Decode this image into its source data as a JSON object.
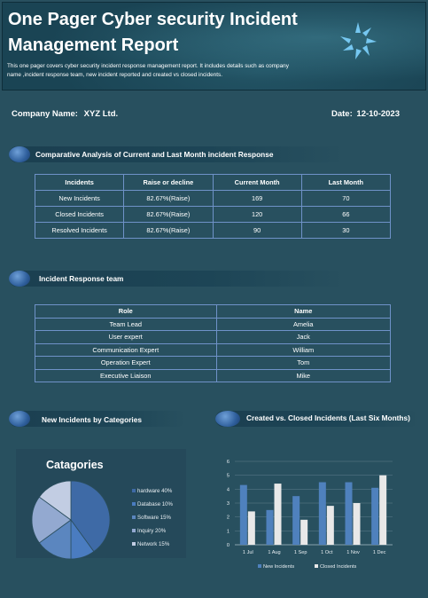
{
  "header": {
    "title": "One Pager Cyber security Incident Management Report",
    "description": "This one pager covers cyber security incident response management report. It includes details such as company name ,incident response team, new incident reported and created vs closed incidents."
  },
  "company": {
    "label": "Company Name:",
    "value": "XYZ Ltd."
  },
  "date": {
    "label": "Date:",
    "value": "12-10-2023"
  },
  "sections": {
    "comparative": "Comparative Analysis of Current and Last Month incident Response",
    "team": "Incident Response team",
    "categories": "New Incidents by Categories",
    "created_closed": "Created vs. Closed Incidents (Last Six Months)"
  },
  "comparison_table": {
    "headers": [
      "Incidents",
      "Raise or decline",
      "Current Month",
      "Last Month"
    ],
    "rows": [
      [
        "New Incidents",
        "82.67%(Raise)",
        "169",
        "70"
      ],
      [
        "Closed  Incidents",
        "82.67%(Raise)",
        "120",
        "66"
      ],
      [
        "Resolved Incidents",
        "82.67%(Raise)",
        "90",
        "30"
      ]
    ]
  },
  "team_table": {
    "headers": [
      "Role",
      "Name"
    ],
    "rows": [
      [
        "Team Lead",
        "Amelia"
      ],
      [
        "User expert",
        "Jack"
      ],
      [
        "Communication Expert",
        "William"
      ],
      [
        "Operation Expert",
        "Tom"
      ],
      [
        "Executive Liaison",
        "Mike"
      ]
    ]
  },
  "colors": {
    "background": "#28505f",
    "header_bg": "#1a4454",
    "table_border": "#6f92c8",
    "new_incidents": "#4f81bd",
    "closed_incidents": "#e8e8e8"
  },
  "chart_data": [
    {
      "type": "pie",
      "title": "Catagories",
      "legend_position": "right",
      "categories": [
        "hardware",
        "Database",
        "Software",
        "Inquiry",
        "Network"
      ],
      "values": [
        40,
        10,
        15,
        20,
        15
      ],
      "labels": [
        "hardware 40%",
        "Database 10%",
        "Software 15%",
        "Inquiry 20%",
        "Network 15%"
      ],
      "colors": [
        "#3e6aa6",
        "#4a7cc0",
        "#5b86bf",
        "#93a9d0",
        "#c2cde3"
      ]
    },
    {
      "type": "bar",
      "title": "",
      "categories": [
        "1 Jul",
        "1 Aug",
        "1 Sep",
        "1 Oct",
        "1 Nov",
        "1 Dec"
      ],
      "series": [
        {
          "name": "New Incidents",
          "values": [
            4.3,
            2.5,
            3.5,
            4.5,
            4.5,
            4.1
          ],
          "color": "#4f81bd"
        },
        {
          "name": "Closed Incidents",
          "values": [
            2.4,
            4.4,
            1.8,
            2.8,
            3.0,
            5.0
          ],
          "color": "#e8e8e8"
        }
      ],
      "ylim": [
        0,
        6
      ],
      "yticks": [
        "0",
        "1",
        "2",
        "3",
        "4",
        "5",
        "6"
      ],
      "grid": true,
      "legend_position": "bottom"
    }
  ]
}
